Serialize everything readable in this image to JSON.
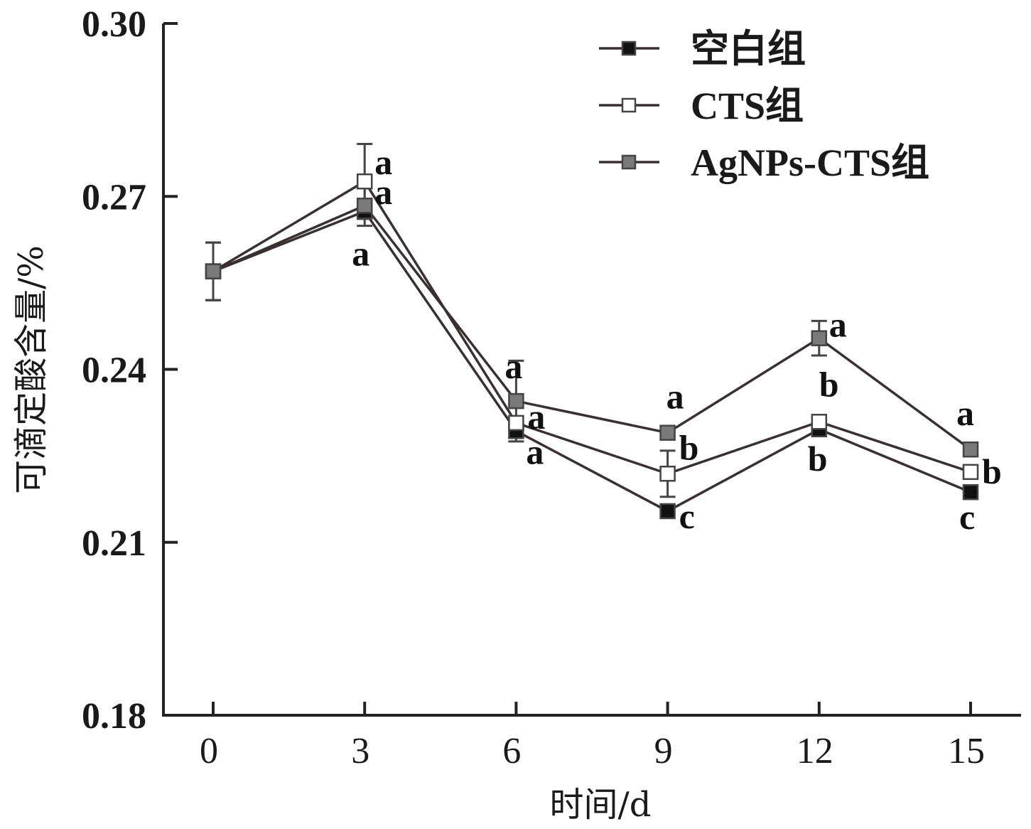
{
  "chart_data": {
    "type": "line",
    "title": "",
    "xlabel": "时间/d",
    "ylabel": "可滴定酸含量/%",
    "x": [
      0,
      3,
      6,
      9,
      12,
      15
    ],
    "x_tick_labels": [
      "0",
      "3",
      "6",
      "9",
      "12",
      "15"
    ],
    "ylim": [
      0.18,
      0.3
    ],
    "y_ticks": [
      0.18,
      0.21,
      0.24,
      0.27,
      0.3
    ],
    "y_tick_labels": [
      "0.18",
      "0.21",
      "0.24",
      "0.27",
      "0.30"
    ],
    "grid": false,
    "legend_position": "top-right",
    "series": [
      {
        "name": "空白组",
        "marker": "filled-black-square",
        "color": "#111111",
        "values": [
          0.257,
          0.2674,
          0.2293,
          0.2154,
          0.2296,
          0.2187
        ],
        "errors": [
          0.005,
          0.0,
          0.0,
          0.0,
          0.0,
          0.0
        ],
        "sig_labels": [
          "",
          "a",
          "a",
          "c",
          "b",
          "c"
        ]
      },
      {
        "name": "CTS组",
        "marker": "open-white-square",
        "color": "#ffffff",
        "values": [
          0.257,
          0.2726,
          0.2307,
          0.2219,
          0.2309,
          0.2222
        ],
        "errors": [
          0.005,
          0.0065,
          0.0,
          0.004,
          0.0,
          0.0
        ],
        "sig_labels": [
          "",
          "a",
          "a",
          "b",
          "b",
          "b"
        ]
      },
      {
        "name": "AgNPs-CTS组",
        "marker": "gray-square",
        "color": "#7a7a7a",
        "values": [
          0.257,
          0.2684,
          0.2345,
          0.229,
          0.2454,
          0.2261
        ],
        "errors": [
          0.005,
          0.0035,
          0.007,
          0.0,
          0.003,
          0.0
        ],
        "sig_labels": [
          "",
          "a",
          "a",
          "a",
          "a",
          "a"
        ]
      }
    ]
  }
}
